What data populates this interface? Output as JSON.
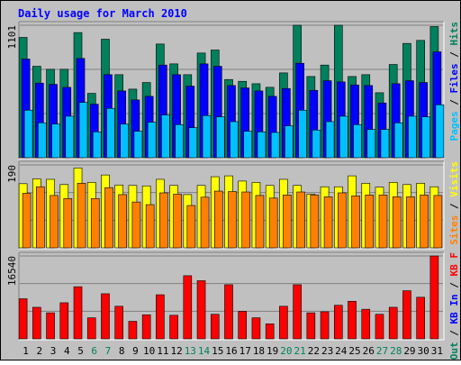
{
  "title": "Daily usage for March 2010",
  "colors": {
    "background": "#c0c0c0",
    "title": "#0000ff",
    "hits": "#00805c",
    "files": "#0000ff",
    "pages": "#00c0ff",
    "visits": "#ffff00",
    "sites": "#ff8000",
    "kbf": "#ff0000",
    "kbin": "#0000ff",
    "kbout": "#00805c"
  },
  "chart_data": {
    "type": "bar",
    "title": "Daily usage for March 2010",
    "categories": [
      "1",
      "2",
      "3",
      "4",
      "5",
      "6",
      "7",
      "8",
      "9",
      "10",
      "11",
      "12",
      "13",
      "14",
      "15",
      "16",
      "17",
      "18",
      "19",
      "20",
      "21",
      "22",
      "23",
      "24",
      "25",
      "26",
      "27",
      "28",
      "29",
      "30",
      "31"
    ],
    "weekend_days": [
      "6",
      "7",
      "13",
      "14",
      "20",
      "21",
      "27",
      "28"
    ],
    "panels": [
      {
        "id": "requests",
        "ylabel_max": "1101",
        "ymax": 1101,
        "legend": [
          {
            "label": "Hits",
            "color": "#00805c"
          },
          {
            "label": "Files",
            "color": "#0000ff"
          },
          {
            "label": "Pages",
            "color": "#00c0ff"
          }
        ],
        "series": [
          {
            "name": "Hits",
            "values": [
              1000,
              760,
              735,
              735,
              1040,
              535,
              985,
              690,
              570,
              625,
              945,
              780,
              690,
              870,
              895,
              650,
              635,
              615,
              585,
              705,
              1101,
              675,
              770,
              1101,
              675,
              690,
              540,
              775,
              950,
              975,
              1090
            ]
          },
          {
            "name": "Files",
            "values": [
              820,
              620,
              610,
              585,
              825,
              445,
              690,
              555,
              480,
              510,
              770,
              690,
              595,
              780,
              760,
              600,
              580,
              555,
              510,
              575,
              785,
              560,
              640,
              630,
              605,
              600,
              455,
              615,
              640,
              625,
              880
            ]
          },
          {
            "name": "Pages",
            "values": [
              395,
              290,
              280,
              345,
              460,
              215,
              410,
              280,
              220,
              295,
              355,
              275,
              250,
              350,
              340,
              300,
              220,
              215,
              210,
              265,
              395,
              230,
              300,
              345,
              275,
              235,
              235,
              290,
              345,
              340,
              440
            ]
          }
        ]
      },
      {
        "id": "visitors",
        "ylabel_max": "190",
        "ymax": 190,
        "legend": [
          {
            "label": "Visits",
            "color": "#ffff00"
          },
          {
            "label": "Sites",
            "color": "#ff8000"
          }
        ],
        "series": [
          {
            "name": "Visits",
            "values": [
              147,
              158,
              157,
              145,
              183,
              150,
              167,
              144,
              143,
              142,
              157,
              143,
              122,
              143,
              163,
              165,
              153,
              150,
              143,
              157,
              143,
              123,
              140,
              140,
              165,
              148,
              139,
              150,
              145,
              148,
              140
            ]
          },
          {
            "name": "Sites",
            "values": [
              125,
              140,
              120,
              113,
              148,
              113,
              138,
              122,
              105,
              99,
              126,
              123,
              97,
              116,
              130,
              129,
              128,
              120,
              114,
              121,
              128,
              121,
              117,
              126,
              119,
              121,
              121,
              117,
              117,
              121,
              120
            ]
          }
        ]
      },
      {
        "id": "volume",
        "ylabel_max": "16540",
        "ymax": 16540,
        "legend": [
          {
            "label": "KB F",
            "color": "#ff0000"
          },
          {
            "label": "KB In",
            "color": "#0000ff"
          },
          {
            "label": "KB Out",
            "color": "#00805c"
          }
        ],
        "series": [
          {
            "name": "KB F",
            "values": [
              8000,
              6300,
              5200,
              7200,
              10400,
              4200,
              9000,
              6500,
              3500,
              4800,
              8800,
              4700,
              12600,
              11600,
              4900,
              10800,
              5500,
              4200,
              3000,
              6500,
              10800,
              5200,
              5400,
              6700,
              7500,
              5900,
              4900,
              6300,
              9600,
              8300,
              16540
            ]
          }
        ]
      }
    ]
  }
}
